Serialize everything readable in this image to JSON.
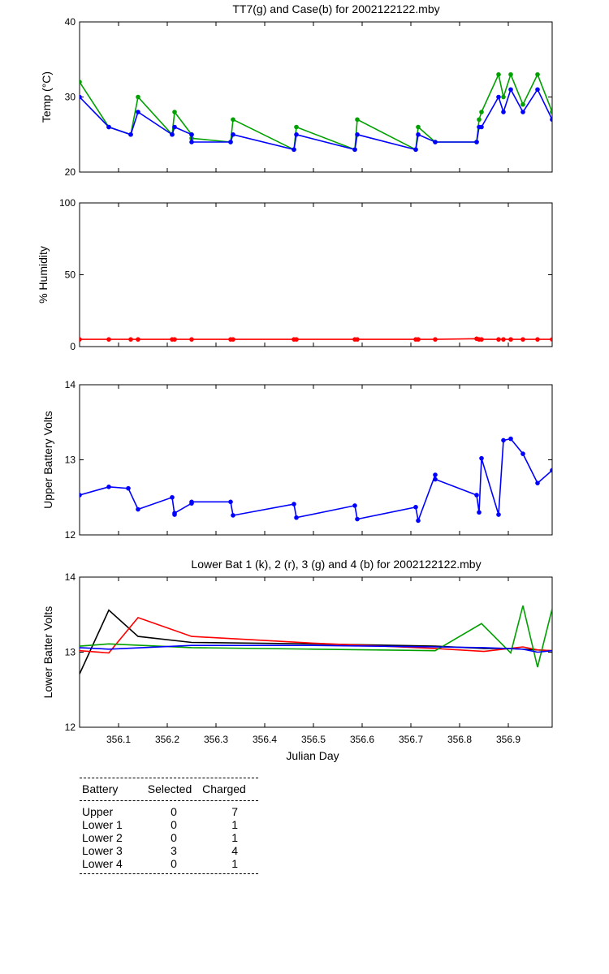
{
  "chart_data": [
    {
      "type": "line",
      "title": "TT7(g) and Case(b) for 2002122122.mby",
      "xlabel": "",
      "ylabel": "Temp  (°C)",
      "xlim": [
        356.02,
        356.99
      ],
      "ylim": [
        20,
        40
      ],
      "yticks": [
        "20",
        "30",
        "40"
      ],
      "x": [
        356.02,
        356.08,
        356.125,
        356.14,
        356.21,
        356.215,
        356.25,
        356.25,
        356.33,
        356.335,
        356.46,
        356.465,
        356.585,
        356.59,
        356.71,
        356.715,
        356.75,
        356.835,
        356.84,
        356.845,
        356.88,
        356.89,
        356.905,
        356.93,
        356.96,
        356.99
      ],
      "series": [
        {
          "name": "TT7",
          "color": "#00a000",
          "values": [
            32,
            26,
            25,
            30,
            25,
            28,
            25,
            24.5,
            24,
            27,
            23,
            26,
            23,
            27,
            23,
            26,
            24,
            24,
            27,
            28,
            33,
            30,
            33,
            29,
            33,
            28
          ]
        },
        {
          "name": "Case",
          "color": "#0000ff",
          "values": [
            30,
            26,
            25,
            28,
            25,
            26,
            25,
            24,
            24,
            25,
            23,
            25,
            23,
            25,
            23,
            25,
            24,
            24,
            26,
            26,
            30,
            28,
            31,
            28,
            31,
            27
          ]
        }
      ]
    },
    {
      "type": "line",
      "title": "",
      "xlabel": "",
      "ylabel": "% Humidity",
      "xlim": [
        356.02,
        356.99
      ],
      "ylim": [
        0,
        100
      ],
      "yticks": [
        "0",
        "50",
        "100"
      ],
      "x": [
        356.02,
        356.08,
        356.125,
        356.14,
        356.21,
        356.215,
        356.25,
        356.33,
        356.335,
        356.46,
        356.465,
        356.585,
        356.59,
        356.71,
        356.715,
        356.75,
        356.835,
        356.84,
        356.845,
        356.88,
        356.89,
        356.905,
        356.93,
        356.96,
        356.99
      ],
      "series": [
        {
          "name": "Humidity",
          "color": "#ff0000",
          "values": [
            5,
            5,
            5,
            5,
            5,
            5,
            5,
            5,
            5,
            5,
            5,
            5,
            5,
            5,
            5,
            5,
            5.5,
            5,
            5,
            5,
            5,
            5,
            5,
            5,
            5
          ]
        }
      ]
    },
    {
      "type": "line",
      "title": "",
      "xlabel": "",
      "ylabel": "Upper Battery Volts",
      "xlim": [
        356.02,
        356.99
      ],
      "ylim": [
        12,
        14
      ],
      "yticks": [
        "12",
        "13",
        "14"
      ],
      "x": [
        356.02,
        356.08,
        356.12,
        356.14,
        356.21,
        356.215,
        356.215,
        356.25,
        356.25,
        356.33,
        356.335,
        356.46,
        356.465,
        356.585,
        356.59,
        356.71,
        356.715,
        356.75,
        356.75,
        356.835,
        356.84,
        356.845,
        356.88,
        356.89,
        356.905,
        356.93,
        356.96,
        356.99
      ],
      "series": [
        {
          "name": "Upper",
          "color": "#0000ff",
          "values": [
            12.53,
            12.64,
            12.62,
            12.34,
            12.5,
            12.27,
            12.29,
            12.42,
            12.44,
            12.44,
            12.26,
            12.41,
            12.23,
            12.39,
            12.21,
            12.37,
            12.19,
            12.8,
            12.74,
            12.53,
            12.3,
            13.02,
            12.27,
            13.26,
            13.28,
            13.08,
            12.69,
            12.86
          ]
        }
      ]
    },
    {
      "type": "line",
      "title": "Lower Bat 1 (k), 2 (r), 3 (g) and 4 (b) for 2002122122.mby",
      "xlabel": "Julian Day",
      "ylabel": "Lower Batter Volts",
      "xlim": [
        356.02,
        356.99
      ],
      "ylim": [
        12,
        14
      ],
      "yticks": [
        "12",
        "13",
        "14"
      ],
      "xticks": [
        "356.1",
        "356.2",
        "356.3",
        "356.4",
        "356.5",
        "356.6",
        "356.7",
        "356.8",
        "356.9"
      ],
      "series": [
        {
          "name": "Lower Bat 1",
          "color": "#000000",
          "x": [
            356.02,
            356.08,
            356.14,
            356.25,
            356.5,
            356.75,
            356.85,
            356.9,
            356.99
          ],
          "values": [
            12.71,
            13.56,
            13.21,
            13.13,
            13.11,
            13.08,
            13.05,
            13.05,
            13.02
          ]
        },
        {
          "name": "Lower Bat 2",
          "color": "#ff0000",
          "x": [
            356.02,
            356.08,
            356.14,
            356.25,
            356.5,
            356.75,
            356.85,
            356.93,
            356.96,
            356.99
          ],
          "values": [
            13.02,
            12.99,
            13.46,
            13.21,
            13.12,
            13.05,
            13.01,
            13.07,
            13.03,
            13.02
          ]
        },
        {
          "name": "Lower Bat 3",
          "color": "#00a000",
          "x": [
            356.02,
            356.08,
            356.25,
            356.5,
            356.75,
            356.845,
            356.905,
            356.93,
            356.96,
            356.99
          ],
          "values": [
            13.08,
            13.11,
            13.06,
            13.04,
            13.02,
            13.38,
            12.99,
            13.62,
            12.8,
            13.58
          ]
        },
        {
          "name": "Lower Bat 4",
          "color": "#0000ff",
          "x": [
            356.02,
            356.08,
            356.25,
            356.5,
            356.75,
            356.85,
            356.93,
            356.96,
            356.99
          ],
          "values": [
            13.06,
            13.04,
            13.09,
            13.09,
            13.07,
            13.06,
            13.04,
            13.0,
            13.02
          ]
        }
      ]
    }
  ],
  "battery_table": {
    "headers": [
      "Battery",
      "Selected",
      "Charged"
    ],
    "rows": [
      [
        "Upper",
        "0",
        "7"
      ],
      [
        "Lower 1",
        "0",
        "1"
      ],
      [
        "Lower 2",
        "0",
        "1"
      ],
      [
        "Lower 3",
        "3",
        "4"
      ],
      [
        "Lower 4",
        "0",
        "1"
      ]
    ]
  }
}
